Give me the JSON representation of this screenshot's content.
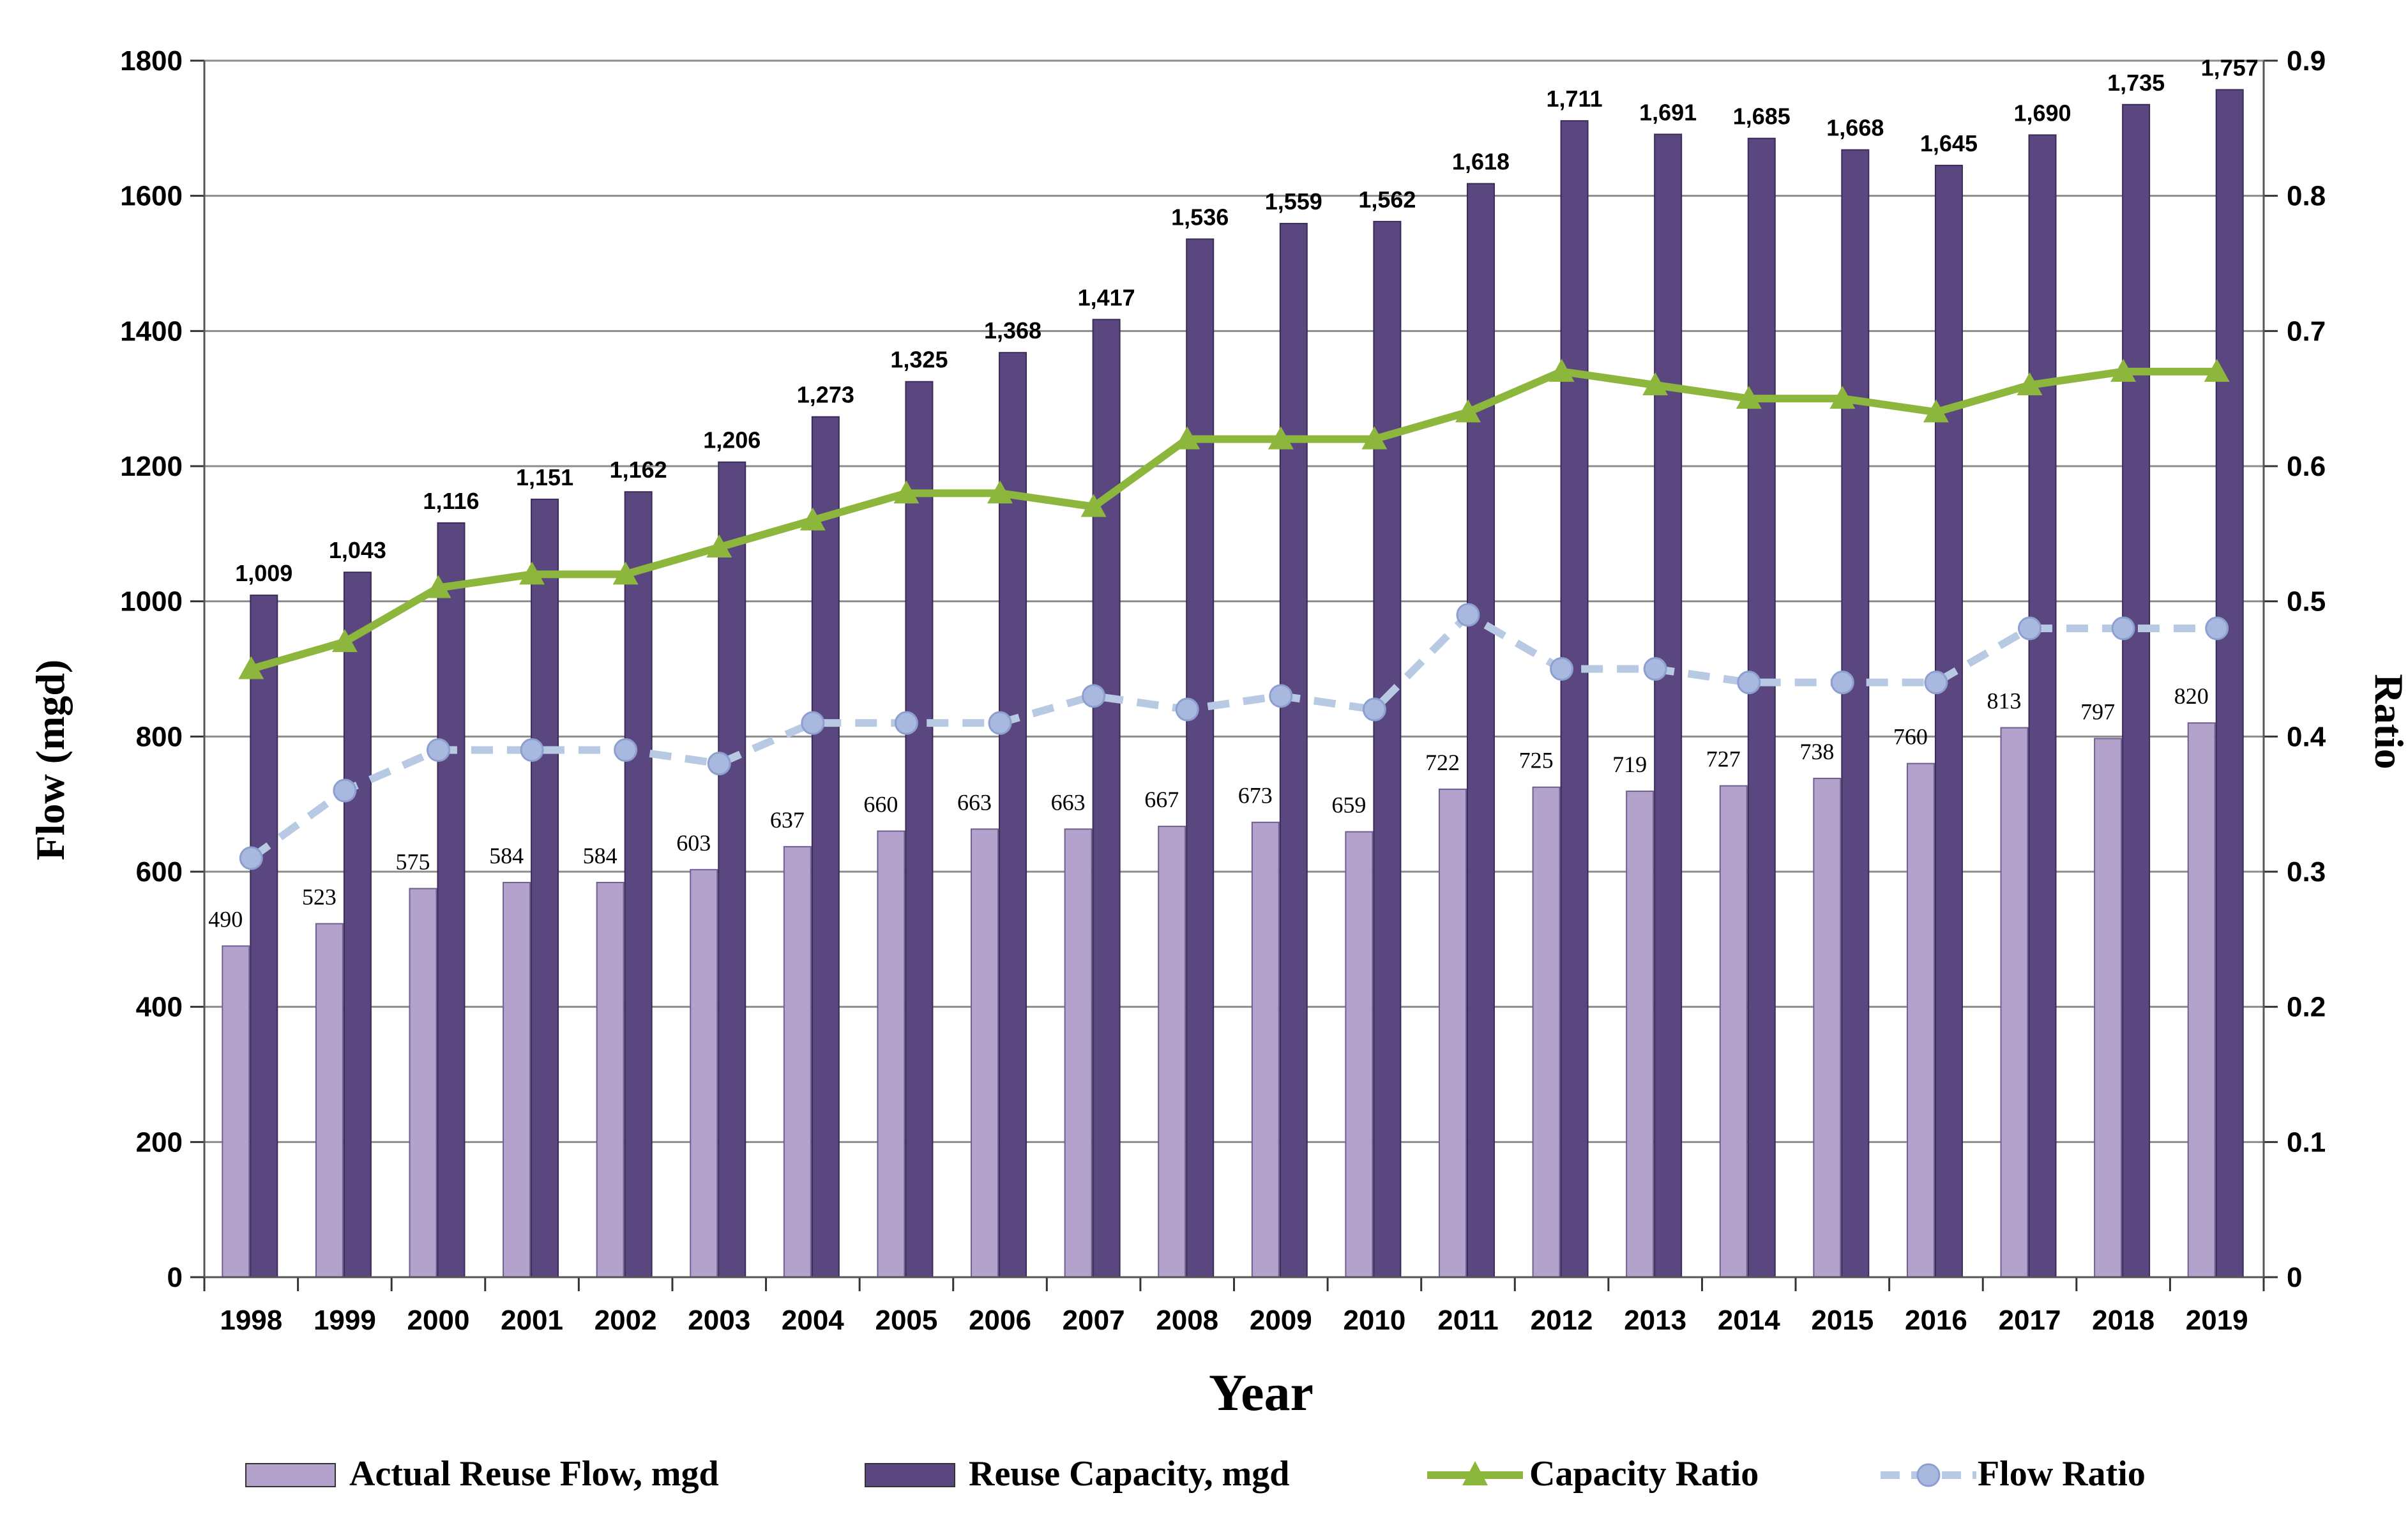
{
  "chart_data": {
    "type": "bar",
    "title": "",
    "xlabel": "Year",
    "ylabel": "Flow (mgd)",
    "y2label": "Ratio",
    "ylim": [
      0,
      1800
    ],
    "y2lim": [
      0,
      0.9
    ],
    "yticks": [
      0,
      200,
      400,
      600,
      800,
      1000,
      1200,
      1400,
      1600,
      1800
    ],
    "y2ticks": [
      "0",
      "0.1",
      "0.2",
      "0.3",
      "0.4",
      "0.5",
      "0.6",
      "0.7",
      "0.8",
      "0.9"
    ],
    "grid": true,
    "legend_position": "bottom",
    "categories": [
      "1998",
      "1999",
      "2000",
      "2001",
      "2002",
      "2003",
      "2004",
      "2005",
      "2006",
      "2007",
      "2008",
      "2009",
      "2010",
      "2011",
      "2012",
      "2013",
      "2014",
      "2015",
      "2016",
      "2017",
      "2018",
      "2019"
    ],
    "series": [
      {
        "name": "Actual Reuse Flow, mgd",
        "kind": "bar",
        "axis": "left",
        "color": "#b3a2cc",
        "values": [
          490,
          523,
          575,
          584,
          584,
          603,
          637,
          660,
          663,
          663,
          667,
          673,
          659,
          722,
          725,
          719,
          727,
          738,
          760,
          813,
          797,
          820
        ],
        "labels": [
          "490",
          "523",
          "575",
          "584",
          "584",
          "603",
          "637",
          "660",
          "663",
          "663",
          "667",
          "673",
          "659",
          "722",
          "725",
          "719",
          "727",
          "738",
          "760",
          "813",
          "797",
          "820"
        ]
      },
      {
        "name": "Reuse Capacity, mgd",
        "kind": "bar",
        "axis": "left",
        "color": "#5b4780",
        "values": [
          1009,
          1043,
          1116,
          1151,
          1162,
          1206,
          1273,
          1325,
          1368,
          1417,
          1536,
          1559,
          1562,
          1618,
          1711,
          1691,
          1685,
          1668,
          1645,
          1690,
          1735,
          1757
        ],
        "labels": [
          "1,009",
          "1,043",
          "1,116",
          "1,151",
          "1,162",
          "1,206",
          "1,273",
          "1,325",
          "1,368",
          "1,417",
          "1,536",
          "1,559",
          "1,562",
          "1,618",
          "1,711",
          "1,691",
          "1,685",
          "1,668",
          "1,645",
          "1,690",
          "1,735",
          "1,757"
        ]
      },
      {
        "name": "Capacity Ratio",
        "kind": "line",
        "axis": "right",
        "color": "#8cb63c",
        "marker": "triangle",
        "values": [
          0.45,
          0.47,
          0.51,
          0.52,
          0.52,
          0.54,
          0.56,
          0.58,
          0.58,
          0.57,
          0.62,
          0.62,
          0.62,
          0.64,
          0.67,
          0.66,
          0.65,
          0.65,
          0.64,
          0.66,
          0.67,
          0.67
        ]
      },
      {
        "name": "Flow Ratio",
        "kind": "line",
        "axis": "right",
        "color": "#b8c9e4",
        "marker_color": "#a8b8df",
        "marker": "circle",
        "dashed": true,
        "values": [
          0.31,
          0.36,
          0.39,
          0.39,
          0.39,
          0.38,
          0.41,
          0.41,
          0.41,
          0.43,
          0.42,
          0.43,
          0.42,
          0.49,
          0.45,
          0.45,
          0.44,
          0.44,
          0.44,
          0.48,
          0.48,
          0.48
        ]
      }
    ]
  }
}
